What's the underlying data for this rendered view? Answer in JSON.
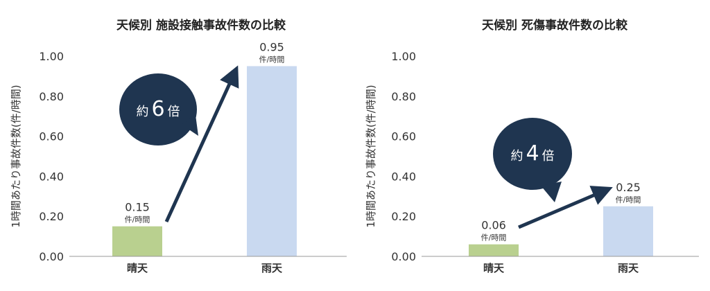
{
  "chart_data": [
    {
      "type": "bar",
      "title": "天候別 施設接触事故件数の比較",
      "ylabel": "1時間あたり事故件数(件/時間)",
      "xlabel": "",
      "categories": [
        "晴天",
        "雨天"
      ],
      "values": [
        0.15,
        0.95
      ],
      "value_labels": [
        "0.15",
        "0.95"
      ],
      "unit_label": "件/時間",
      "bar_colors": [
        "#b9d08f",
        "#c9d9f0"
      ],
      "ylim": [
        0,
        1.0
      ],
      "yticks": [
        "0.00",
        "0.20",
        "0.40",
        "0.60",
        "0.80",
        "1.00"
      ],
      "grid": false,
      "callout": {
        "prefix": "約",
        "number": "6",
        "suffix": "倍"
      }
    },
    {
      "type": "bar",
      "title": "天候別 死傷事故件数の比較",
      "ylabel": "1時間あたり事故件数(件/時間)",
      "xlabel": "",
      "categories": [
        "晴天",
        "雨天"
      ],
      "values": [
        0.06,
        0.25
      ],
      "value_labels": [
        "0.06",
        "0.25"
      ],
      "unit_label": "件/時間",
      "bar_colors": [
        "#b9d08f",
        "#c9d9f0"
      ],
      "ylim": [
        0,
        1.0
      ],
      "yticks": [
        "0.00",
        "0.20",
        "0.40",
        "0.60",
        "0.80",
        "1.00"
      ],
      "grid": false,
      "callout": {
        "prefix": "約",
        "number": "4",
        "suffix": "倍"
      }
    }
  ],
  "colors": {
    "bubble": "#1f3550",
    "arrow": "#1f3550",
    "axis": "#999999",
    "text": "#333333"
  }
}
